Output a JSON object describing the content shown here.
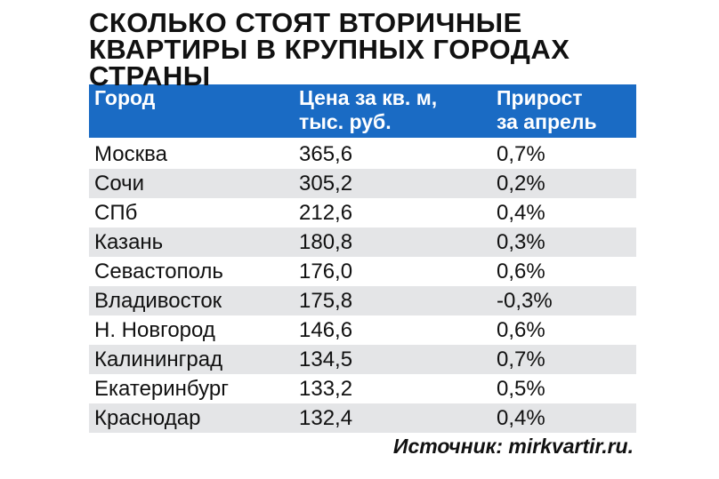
{
  "header": {
    "title": [
      "СКОЛЬКО СТОЯТ ВТОРИЧНЫЕ",
      "КВАРТИРЫ В КРУПНЫХ ГОРОДАХ",
      "СТРАНЫ"
    ]
  },
  "table": {
    "columns": [
      [
        "Город"
      ],
      [
        "Цена за кв. м,",
        "тыс. руб."
      ],
      [
        "Прирост",
        "за апрель"
      ]
    ],
    "rows": [
      [
        "Москва",
        "365,6",
        "0,7%"
      ],
      [
        "Сочи",
        "305,2",
        "0,2%"
      ],
      [
        "СПб",
        "212,6",
        "0,4%"
      ],
      [
        "Казань",
        "180,8",
        "0,3%"
      ],
      [
        "Севастополь",
        "176,0",
        "0,6%"
      ],
      [
        "Владивосток",
        "175,8",
        "-0,3%"
      ],
      [
        "Н. Новгород",
        "146,6",
        "0,6%"
      ],
      [
        "Калининград",
        "134,5",
        "0,7%"
      ],
      [
        "Екатеринбург",
        "133,2",
        "0,5%"
      ],
      [
        "Краснодар",
        "132,4",
        "0,4%"
      ]
    ]
  },
  "footer": {
    "source": "Источник: mirkvartir.ru."
  }
}
